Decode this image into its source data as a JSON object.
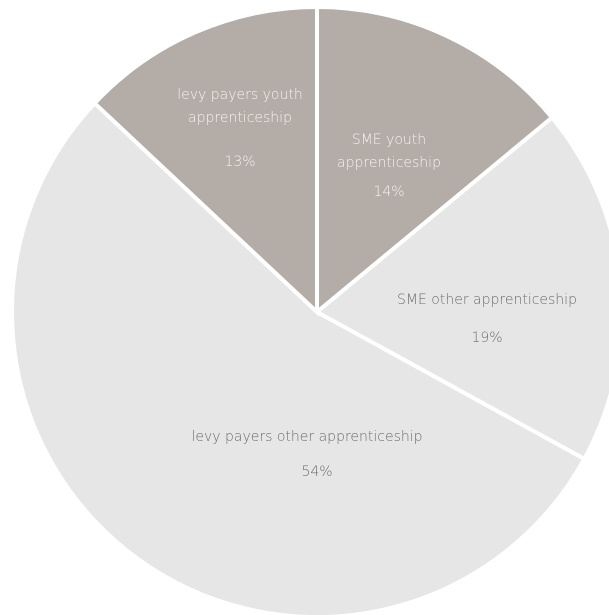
{
  "chart_data": {
    "type": "pie",
    "categories": [
      "SME youth apprenticeship",
      "SME other apprenticeship",
      "levy payers other apprenticeship",
      "levy payers youth apprenticeship"
    ],
    "values": [
      14,
      19,
      54,
      13
    ],
    "value_labels": [
      "14%",
      "19%",
      "54%",
      "13%"
    ],
    "colors": [
      "#b3aca7",
      "#e6e6e6",
      "#e6e6e6",
      "#b3aca7"
    ]
  }
}
